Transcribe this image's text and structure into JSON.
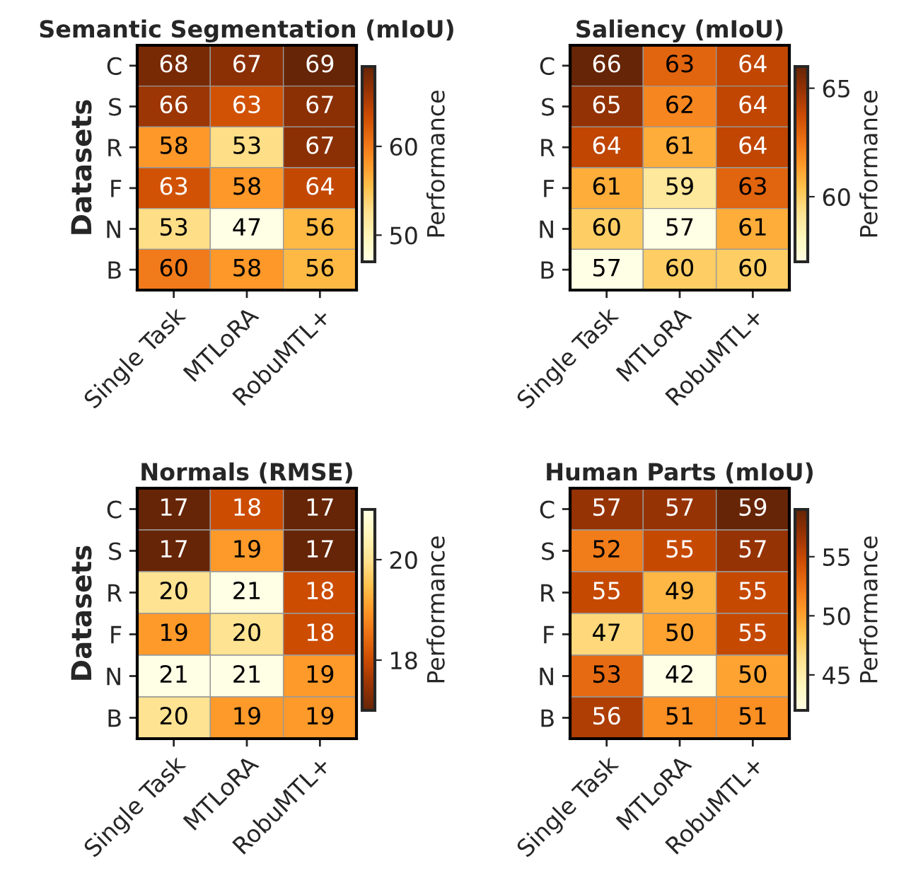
{
  "chart_data": [
    {
      "type": "heatmap",
      "title": "Semantic Segmentation (mIoU)",
      "ylabel": "Datasets",
      "clabel": "Performance",
      "categories": [
        "Single Task",
        "MTLoRA",
        "RobuMTL+"
      ],
      "y_categories": [
        "C",
        "S",
        "R",
        "F",
        "N",
        "B"
      ],
      "cells": [
        [
          68,
          67,
          69
        ],
        [
          66,
          63,
          67
        ],
        [
          58,
          53,
          67
        ],
        [
          63,
          58,
          64
        ],
        [
          53,
          47,
          56
        ],
        [
          60,
          58,
          56
        ]
      ],
      "data_labels": true,
      "clim": [
        47,
        69
      ],
      "cticks": [
        50,
        60
      ],
      "colors": [
        "#ffffe5",
        "#fff7bc",
        "#fee391",
        "#fec44f",
        "#fe9929",
        "#ec7014",
        "#cc4c02",
        "#993404",
        "#662506"
      ]
    },
    {
      "type": "heatmap",
      "title": "Saliency (mIoU)",
      "clabel": "Performance",
      "categories": [
        "Single Task",
        "MTLoRA",
        "RobuMTL+"
      ],
      "y_categories": [
        "C",
        "S",
        "R",
        "F",
        "N",
        "B"
      ],
      "cells": [
        [
          66,
          63,
          64
        ],
        [
          65,
          62,
          64
        ],
        [
          64,
          61,
          64
        ],
        [
          61,
          59,
          63
        ],
        [
          60,
          57,
          61
        ],
        [
          57,
          60,
          60
        ]
      ],
      "data_labels": true,
      "clim": [
        57,
        66
      ],
      "cticks": [
        60,
        65
      ],
      "colors": [
        "#ffffe5",
        "#fff7bc",
        "#fee391",
        "#fec44f",
        "#fe9929",
        "#ec7014",
        "#cc4c02",
        "#993404",
        "#662506"
      ]
    },
    {
      "type": "heatmap",
      "title": "Normals (RMSE)",
      "ylabel": "Datasets",
      "clabel": "Performance",
      "categories": [
        "Single Task",
        "MTLoRA",
        "RobuMTL+"
      ],
      "y_categories": [
        "C",
        "S",
        "R",
        "F",
        "N",
        "B"
      ],
      "cells": [
        [
          17,
          18,
          17
        ],
        [
          17,
          19,
          17
        ],
        [
          20,
          21,
          18
        ],
        [
          19,
          20,
          18
        ],
        [
          21,
          21,
          19
        ],
        [
          20,
          19,
          19
        ]
      ],
      "data_labels": true,
      "clim": [
        17,
        21
      ],
      "cticks": [
        18,
        20
      ],
      "colors": [
        "#662506",
        "#993404",
        "#cc4c02",
        "#ec7014",
        "#fe9929",
        "#fec44f",
        "#fee391",
        "#fff7bc",
        "#ffffe5"
      ]
    },
    {
      "type": "heatmap",
      "title": "Human Parts (mIoU)",
      "clabel": "Performance",
      "categories": [
        "Single Task",
        "MTLoRA",
        "RobuMTL+"
      ],
      "y_categories": [
        "C",
        "S",
        "R",
        "F",
        "N",
        "B"
      ],
      "cells": [
        [
          57,
          57,
          59
        ],
        [
          52,
          55,
          57
        ],
        [
          55,
          49,
          55
        ],
        [
          47,
          50,
          55
        ],
        [
          53,
          42,
          50
        ],
        [
          56,
          51,
          51
        ]
      ],
      "data_labels": true,
      "clim": [
        42,
        59
      ],
      "cticks": [
        45,
        50,
        55
      ],
      "colors": [
        "#ffffe5",
        "#fff7bc",
        "#fee391",
        "#fec44f",
        "#fe9929",
        "#ec7014",
        "#cc4c02",
        "#993404",
        "#662506"
      ]
    }
  ]
}
